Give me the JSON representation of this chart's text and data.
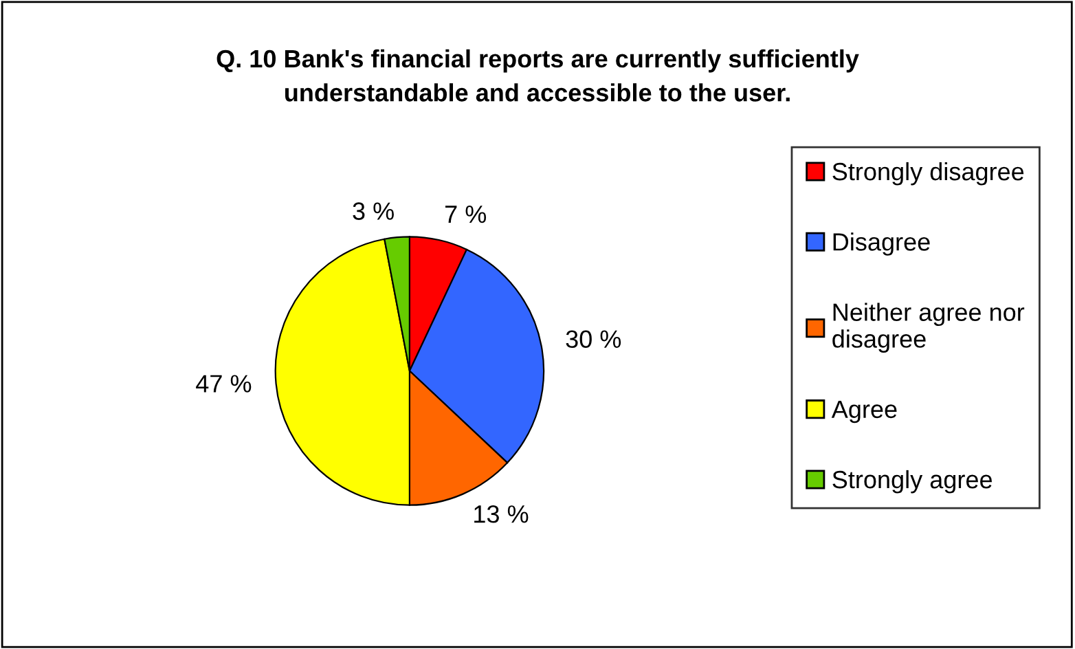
{
  "chart_data": {
    "type": "pie",
    "title": "Q. 10 Bank's financial reports are currently sufficiently\nunderstandable and accessible to the user.",
    "categories": [
      "Strongly disagree",
      "Disagree",
      "Neither agree nor\ndisagree",
      "Agree",
      "Strongly agree"
    ],
    "values": [
      7,
      30,
      13,
      47,
      3
    ],
    "colors": [
      "#ff0000",
      "#3366ff",
      "#ff6600",
      "#ffff00",
      "#66cc00"
    ],
    "value_labels": [
      "7 %",
      "30 %",
      "13 %",
      "47 %",
      "3 %"
    ],
    "legend": "right"
  }
}
